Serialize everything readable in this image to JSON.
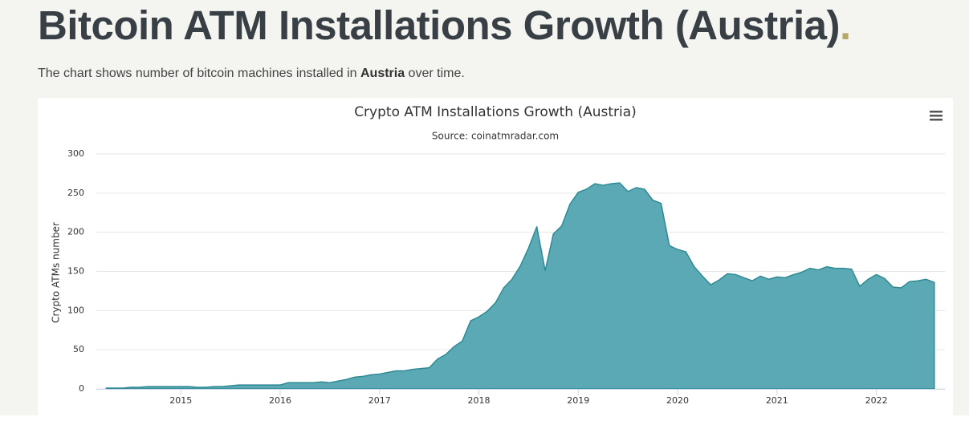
{
  "header": {
    "title": "Bitcoin ATM Installations Growth (Austria)",
    "title_mark": ".",
    "description": [
      "The chart shows number of bitcoin machines installed in ",
      "Austria",
      " over time."
    ]
  },
  "chart_data": {
    "type": "area",
    "title": "Crypto ATM Installations Growth (Austria)",
    "subtitle": "Source: coinatmradar.com",
    "y_label": "Crypto ATMs number",
    "color": "#5ba9b4",
    "grid": true,
    "x": [
      2014.25,
      2014.333,
      2014.417,
      2014.5,
      2014.583,
      2014.667,
      2014.75,
      2014.833,
      2014.917,
      2015,
      2015.083,
      2015.167,
      2015.25,
      2015.333,
      2015.417,
      2015.5,
      2015.583,
      2015.667,
      2015.75,
      2015.833,
      2015.917,
      2016,
      2016.083,
      2016.167,
      2016.25,
      2016.333,
      2016.417,
      2016.5,
      2016.583,
      2016.667,
      2016.75,
      2016.833,
      2016.917,
      2017,
      2017.083,
      2017.167,
      2017.25,
      2017.333,
      2017.417,
      2017.5,
      2017.583,
      2017.667,
      2017.75,
      2017.833,
      2017.917,
      2018,
      2018.083,
      2018.167,
      2018.25,
      2018.333,
      2018.417,
      2018.5,
      2018.583,
      2018.667,
      2018.75,
      2018.833,
      2018.917,
      2019,
      2019.083,
      2019.167,
      2019.25,
      2019.333,
      2019.417,
      2019.5,
      2019.583,
      2019.667,
      2019.75,
      2019.833,
      2019.917,
      2020,
      2020.083,
      2020.167,
      2020.25,
      2020.333,
      2020.417,
      2020.5,
      2020.583,
      2020.667,
      2020.75,
      2020.833,
      2020.917,
      2021,
      2021.083,
      2021.167,
      2021.25,
      2021.333,
      2021.417,
      2021.5,
      2021.583,
      2021.667,
      2021.75,
      2021.833,
      2021.917,
      2022,
      2022.083,
      2022.167,
      2022.25,
      2022.333,
      2022.417,
      2022.5,
      2022.583
    ],
    "values": [
      1,
      1,
      1,
      2,
      2,
      3,
      3,
      3,
      3,
      3,
      3,
      2,
      2,
      3,
      3,
      4,
      5,
      5,
      5,
      5,
      5,
      5,
      8,
      8,
      8,
      8,
      9,
      8,
      10,
      12,
      15,
      16,
      18,
      19,
      21,
      23,
      23,
      25,
      26,
      27,
      38,
      44,
      54,
      61,
      87,
      92,
      99,
      110,
      129,
      140,
      157,
      180,
      207,
      151,
      198,
      208,
      236,
      251,
      255,
      262,
      260,
      262,
      263,
      252,
      257,
      255,
      241,
      237,
      183,
      178,
      175,
      156,
      144,
      133,
      139,
      147,
      146,
      142,
      138,
      144,
      140,
      143,
      142,
      146,
      149,
      154,
      152,
      156,
      154,
      154,
      153,
      131,
      140,
      146,
      141,
      130,
      129,
      137,
      138,
      140,
      136
    ],
    "xlim": [
      2014.15,
      2022.69
    ],
    "xticks": [
      2015,
      2016,
      2017,
      2018,
      2019,
      2020,
      2021,
      2022
    ],
    "ylim": [
      0,
      300
    ],
    "yticks": [
      0,
      50,
      100,
      150,
      200,
      250,
      300
    ]
  }
}
